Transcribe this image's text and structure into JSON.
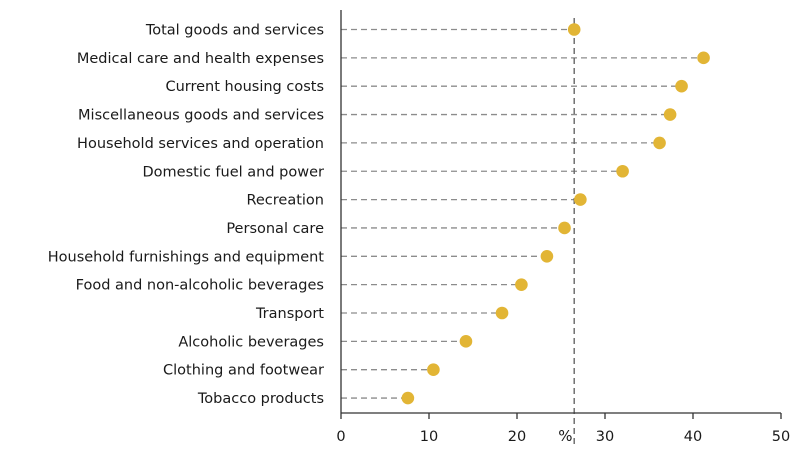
{
  "chart_data": {
    "type": "scatter",
    "orientation": "horizontal-dot",
    "categories": [
      "Total goods and services",
      "Medical care and health expenses",
      "Current housing costs",
      "Miscellaneous goods and services",
      "Household services and operation",
      "Domestic fuel and power",
      "Recreation",
      "Personal care",
      "Household furnishings and equipment",
      "Food and non-alcoholic beverages",
      "Transport",
      "Alcoholic beverages",
      "Clothing and footwear",
      "Tobacco products"
    ],
    "values": [
      26.5,
      41.2,
      38.7,
      37.4,
      36.2,
      32.0,
      27.2,
      25.4,
      23.4,
      20.5,
      18.3,
      14.2,
      10.5,
      7.6
    ],
    "reference_line": 26.5,
    "xlabel": "%",
    "xlim": [
      0,
      50
    ],
    "xticks": [
      "0",
      "10",
      "20",
      "30",
      "40",
      "50"
    ],
    "grid": false,
    "colors": {
      "marker": "#e2b535",
      "leader": "#8c8c8c",
      "axis": "#333333"
    }
  }
}
